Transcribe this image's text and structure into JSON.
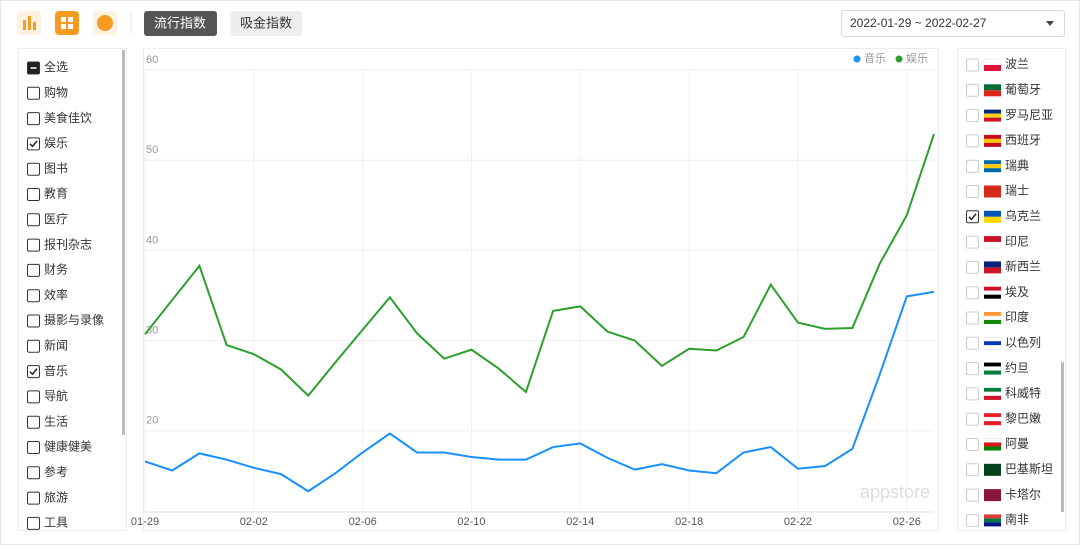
{
  "toolbar": {
    "tabs": [
      "流行指数",
      "吸金指数"
    ],
    "active_tab": 0,
    "date_range": "2022-01-29 ~ 2022-02-27"
  },
  "categories_panel": {
    "items": [
      {
        "label": "全选",
        "state": "partial"
      },
      {
        "label": "购物",
        "state": "unchecked"
      },
      {
        "label": "美食佳饮",
        "state": "unchecked"
      },
      {
        "label": "娱乐",
        "state": "checked"
      },
      {
        "label": "图书",
        "state": "unchecked"
      },
      {
        "label": "教育",
        "state": "unchecked"
      },
      {
        "label": "医疗",
        "state": "unchecked"
      },
      {
        "label": "报刊杂志",
        "state": "unchecked"
      },
      {
        "label": "财务",
        "state": "unchecked"
      },
      {
        "label": "效率",
        "state": "unchecked"
      },
      {
        "label": "摄影与录像",
        "state": "unchecked"
      },
      {
        "label": "新闻",
        "state": "unchecked"
      },
      {
        "label": "音乐",
        "state": "checked"
      },
      {
        "label": "导航",
        "state": "unchecked"
      },
      {
        "label": "生活",
        "state": "unchecked"
      },
      {
        "label": "健康健美",
        "state": "unchecked"
      },
      {
        "label": "参考",
        "state": "unchecked"
      },
      {
        "label": "旅游",
        "state": "unchecked"
      },
      {
        "label": "工具",
        "state": "unchecked"
      }
    ]
  },
  "countries_panel": {
    "items": [
      {
        "label": "波兰",
        "checked": false,
        "flag": [
          "#ffffff",
          "#dc143c"
        ]
      },
      {
        "label": "葡萄牙",
        "checked": false,
        "flag": [
          "#046a38",
          "#da291c"
        ]
      },
      {
        "label": "罗马尼亚",
        "checked": false,
        "flag": [
          "#002b7f",
          "#fcd116",
          "#ce1126"
        ]
      },
      {
        "label": "西班牙",
        "checked": false,
        "flag": [
          "#c60b1e",
          "#ffc400",
          "#c60b1e"
        ]
      },
      {
        "label": "瑞典",
        "checked": false,
        "flag": [
          "#006aa7",
          "#fecc00",
          "#006aa7"
        ]
      },
      {
        "label": "瑞士",
        "checked": false,
        "flag": [
          "#d52b1e"
        ]
      },
      {
        "label": "乌克兰",
        "checked": true,
        "flag": [
          "#0057b7",
          "#ffd700"
        ]
      },
      {
        "label": "印尼",
        "checked": false,
        "flag": [
          "#ce1126",
          "#ffffff"
        ]
      },
      {
        "label": "新西兰",
        "checked": false,
        "flag": [
          "#00247d",
          "#cc142b"
        ]
      },
      {
        "label": "埃及",
        "checked": false,
        "flag": [
          "#ce1126",
          "#ffffff",
          "#000000"
        ]
      },
      {
        "label": "印度",
        "checked": false,
        "flag": [
          "#ff9933",
          "#ffffff",
          "#138808"
        ]
      },
      {
        "label": "以色列",
        "checked": false,
        "flag": [
          "#ffffff",
          "#0038b8",
          "#ffffff"
        ]
      },
      {
        "label": "约旦",
        "checked": false,
        "flag": [
          "#000000",
          "#ffffff",
          "#007a3d"
        ]
      },
      {
        "label": "科威特",
        "checked": false,
        "flag": [
          "#007a3d",
          "#ffffff",
          "#ce1126"
        ]
      },
      {
        "label": "黎巴嫩",
        "checked": false,
        "flag": [
          "#ed1c24",
          "#ffffff",
          "#ed1c24"
        ]
      },
      {
        "label": "阿曼",
        "checked": false,
        "flag": [
          "#ffffff",
          "#db161b",
          "#008000"
        ]
      },
      {
        "label": "巴基斯坦",
        "checked": false,
        "flag": [
          "#01411c"
        ]
      },
      {
        "label": "卡塔尔",
        "checked": false,
        "flag": [
          "#8a1538"
        ]
      },
      {
        "label": "南非",
        "checked": false,
        "flag": [
          "#e03c31",
          "#007749",
          "#001489"
        ]
      }
    ]
  },
  "chart_data": {
    "type": "line",
    "categories": [
      "01-29",
      null,
      null,
      null,
      "02-02",
      null,
      null,
      null,
      "02-06",
      null,
      null,
      null,
      "02-10",
      null,
      null,
      null,
      "02-14",
      null,
      null,
      null,
      "02-18",
      null,
      null,
      null,
      "02-22",
      null,
      null,
      null,
      "02-26",
      null
    ],
    "series": [
      {
        "name": "音乐",
        "color": "#1890ff",
        "values": [
          16.6,
          15.6,
          17.5,
          16.8,
          15.9,
          15.2,
          13.3,
          15.3,
          17.6,
          19.7,
          17.6,
          17.6,
          17.1,
          16.8,
          16.8,
          18.2,
          18.6,
          17.0,
          15.7,
          16.3,
          15.6,
          15.3,
          17.6,
          18.2,
          15.8,
          16.1,
          18.0,
          26.2,
          34.9,
          35.4
        ]
      },
      {
        "name": "娱乐",
        "color": "#2ca02c",
        "values": [
          30.7,
          34.5,
          38.3,
          29.5,
          28.5,
          26.8,
          23.9,
          27.6,
          31.2,
          34.8,
          30.8,
          28.0,
          29.0,
          26.9,
          24.3,
          33.3,
          33.8,
          31.0,
          30.0,
          27.2,
          29.1,
          28.9,
          30.4,
          36.2,
          32.0,
          31.3,
          31.4,
          38.5,
          43.9,
          52.9
        ]
      }
    ],
    "ylim": [
      11,
      60
    ],
    "yticks": [
      20,
      30,
      40,
      50,
      60
    ],
    "grid": true,
    "legend": "top-right",
    "watermark": "appstore"
  }
}
